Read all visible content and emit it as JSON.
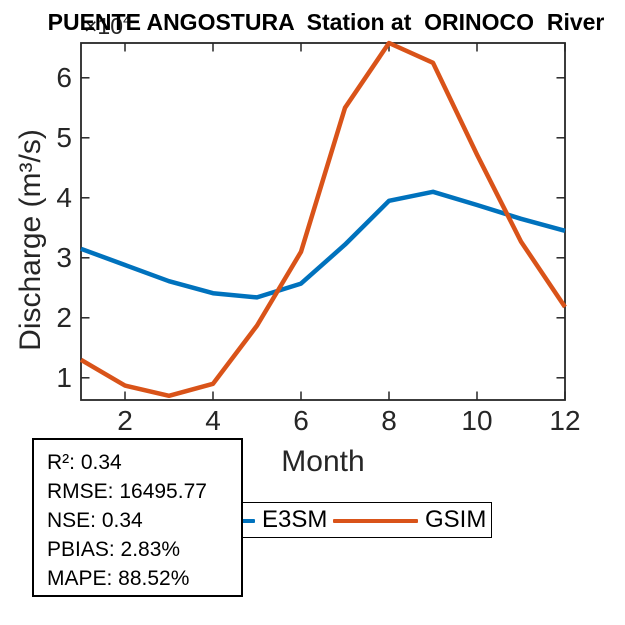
{
  "title": "PUENTE ANGOSTURA  Station at  ORINOCO  River",
  "y_exponent": {
    "base": "×10",
    "power": "4"
  },
  "chart_data": {
    "type": "line",
    "title": "PUENTE ANGOSTURA  Station at  ORINOCO  River",
    "xlabel": "Month",
    "ylabel": "Discharge (m³/s)",
    "y_units_multiplier": "×10⁴",
    "x": [
      1,
      2,
      3,
      4,
      5,
      6,
      7,
      8,
      9,
      10,
      11,
      12
    ],
    "series": [
      {
        "name": "E3SM",
        "color": "#0072BD",
        "values": [
          3.15,
          2.88,
          2.61,
          2.41,
          2.34,
          2.57,
          3.22,
          3.95,
          4.1,
          3.88,
          3.65,
          3.45
        ]
      },
      {
        "name": "GSIM",
        "color": "#D95319",
        "values": [
          1.3,
          0.87,
          0.7,
          0.9,
          1.87,
          3.1,
          5.5,
          6.58,
          6.25,
          4.72,
          3.27,
          2.18
        ]
      }
    ],
    "xlim": [
      1,
      12
    ],
    "ylim": [
      0.63,
      6.58
    ],
    "xticks": [
      2,
      4,
      6,
      8,
      10,
      12
    ],
    "yticks": [
      1,
      2,
      3,
      4,
      5,
      6
    ],
    "grid": false,
    "legend_position": "below-plot"
  },
  "legend": {
    "items": [
      {
        "label": "E3SM",
        "color": "#0072BD"
      },
      {
        "label": "GSIM",
        "color": "#D95319"
      }
    ]
  },
  "stats_box": {
    "lines": [
      "R²: 0.34",
      "RMSE: 16495.77",
      "NSE: 0.34",
      "PBIAS: 2.83%",
      "MAPE: 88.52%"
    ]
  },
  "colors": {
    "axis": "#262626",
    "tick_text": "#262626",
    "title_text": "#000000",
    "background": "#ffffff"
  }
}
